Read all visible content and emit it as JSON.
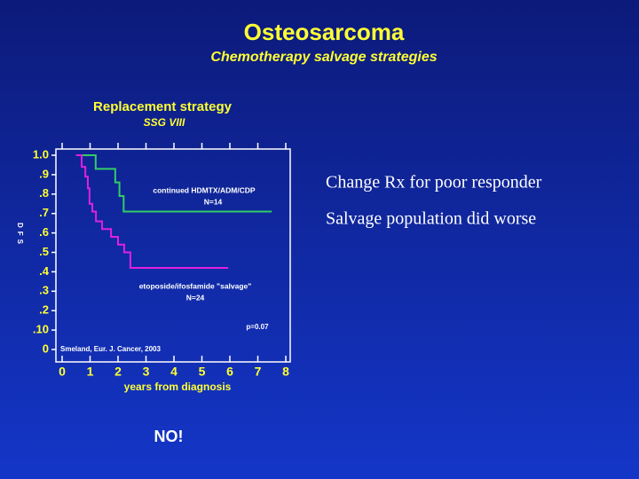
{
  "slide": {
    "title": "Osteosarcoma",
    "subtitle": "Chemotherapy salvage strategies",
    "bullets": [
      "Change Rx for poor responder",
      "Salvage population did worse"
    ],
    "conclusion": "NO!"
  },
  "chart_data": {
    "type": "step",
    "title": "Replacement strategy",
    "subtitle": "SSG VIII",
    "x_label": "years from diagnosis",
    "y_label": "DFS",
    "xlim": [
      0,
      8
    ],
    "xticks": [
      0,
      1,
      2,
      3,
      4,
      5,
      6,
      7,
      8
    ],
    "ylim": [
      0,
      1
    ],
    "yticks": [
      0,
      {
        "value": 0.1,
        "label": ".10"
      },
      {
        "value": 0.2,
        "label": ".2"
      },
      {
        "value": 0.3,
        "label": ".3"
      },
      {
        "value": 0.4,
        "label": ".4"
      },
      {
        "value": 0.5,
        "label": ".5"
      },
      {
        "value": 0.6,
        "label": ".6"
      },
      {
        "value": 0.7,
        "label": ".7"
      },
      {
        "value": 0.8,
        "label": ".8"
      },
      {
        "value": 0.9,
        "label": ".9"
      },
      {
        "value": 1,
        "label": "1.0"
      }
    ],
    "series": [
      {
        "name": "continued HDMTX/ADM/CDP",
        "color": "#33cc66",
        "n_label": "N=14",
        "x": [
          0.5,
          1.2,
          1.9,
          2.05,
          2.2,
          7.5
        ],
        "values": [
          1.0,
          0.93,
          0.86,
          0.79,
          0.71,
          0.71
        ]
      },
      {
        "name": "etoposide/ifosfamide \"salvage\"",
        "color": "#e020e0",
        "n_label": "N=24",
        "x": [
          0.5,
          0.7,
          0.83,
          0.92,
          0.98,
          1.08,
          1.21,
          1.43,
          1.75,
          2.0,
          2.22,
          2.44,
          5.94
        ],
        "values": [
          1.0,
          0.94,
          0.89,
          0.83,
          0.75,
          0.71,
          0.66,
          0.62,
          0.58,
          0.54,
          0.5,
          0.42,
          0.42
        ]
      }
    ],
    "annotations": [
      "p=0.07",
      "Smeland, Eur. J. Cancer, 2003"
    ]
  }
}
